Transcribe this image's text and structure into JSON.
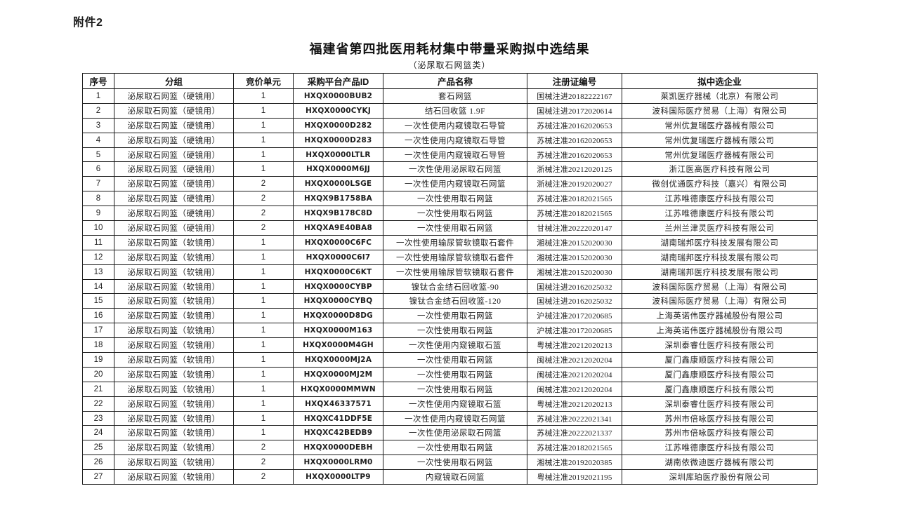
{
  "page": {
    "attachment_label": "附件2",
    "title": "福建省第四批医用耗材集中带量采购拟中选结果",
    "subtitle": "（泌尿取石网篮类）"
  },
  "table": {
    "columns": [
      "序号",
      "分组",
      "竞价单元",
      "采购平台产品ID",
      "产品名称",
      "注册证编号",
      "拟中选企业"
    ],
    "column_keys": [
      "index",
      "group",
      "bidding-unit",
      "product-id",
      "product-name",
      "registration-no",
      "company"
    ],
    "rows": [
      [
        "1",
        "泌尿取石网篮（硬镜用）",
        "1",
        "HXQX0000BUB2",
        "套石网篮",
        "国械注进20182222167",
        "莱凯医疗器械（北京）有限公司"
      ],
      [
        "2",
        "泌尿取石网篮（硬镜用）",
        "1",
        "HXQX0000CYKJ",
        "结石回收篮 1.9F",
        "国械注进20172020614",
        "波科国际医疗贸易（上海）有限公司"
      ],
      [
        "3",
        "泌尿取石网篮（硬镜用）",
        "1",
        "HXQX0000D282",
        "一次性使用内窥镜取石导管",
        "苏械注准20162020653",
        "常州优复瑞医疗器械有限公司"
      ],
      [
        "4",
        "泌尿取石网篮（硬镜用）",
        "1",
        "HXQX0000D283",
        "一次性使用内窥镜取石导管",
        "苏械注准20162020653",
        "常州优复瑞医疗器械有限公司"
      ],
      [
        "5",
        "泌尿取石网篮（硬镜用）",
        "1",
        "HXQX0000LTLR",
        "一次性使用内窥镜取石导管",
        "苏械注准20162020653",
        "常州优复瑞医疗器械有限公司"
      ],
      [
        "6",
        "泌尿取石网篮（硬镜用）",
        "1",
        "HXQX0000M6JJ",
        "一次性使用泌尿取石网篮",
        "浙械注准20212020125",
        "浙江医高医疗科技有限公司"
      ],
      [
        "7",
        "泌尿取石网篮（硬镜用）",
        "2",
        "HXQX0000LSGE",
        "一次性使用内窥镜取石网篮",
        "浙械注准20192020027",
        "微创优通医疗科技（嘉兴）有限公司"
      ],
      [
        "8",
        "泌尿取石网篮（硬镜用）",
        "2",
        "HXQX9B1758BA",
        "一次性使用取石网篮",
        "苏械注准20182021565",
        "江苏唯德康医疗科技有限公司"
      ],
      [
        "9",
        "泌尿取石网篮（硬镜用）",
        "2",
        "HXQX9B178C8D",
        "一次性使用取石网篮",
        "苏械注准20182021565",
        "江苏唯德康医疗科技有限公司"
      ],
      [
        "10",
        "泌尿取石网篮（硬镜用）",
        "2",
        "HXQXA9E40BA8",
        "一次性使用取石网篮",
        "甘械注准20222020147",
        "兰州兰津灵医疗科技有限公司"
      ],
      [
        "11",
        "泌尿取石网篮（软镜用）",
        "1",
        "HXQX0000C6FC",
        "一次性使用输尿管软镜取石套件",
        "湘械注准20152020030",
        "湖南瑞邦医疗科技发展有限公司"
      ],
      [
        "12",
        "泌尿取石网篮（软镜用）",
        "1",
        "HXQX0000C6I7",
        "一次性使用输尿管软镜取石套件",
        "湘械注准20152020030",
        "湖南瑞邦医疗科技发展有限公司"
      ],
      [
        "13",
        "泌尿取石网篮（软镜用）",
        "1",
        "HXQX0000C6KT",
        "一次性使用输尿管软镜取石套件",
        "湘械注准20152020030",
        "湖南瑞邦医疗科技发展有限公司"
      ],
      [
        "14",
        "泌尿取石网篮（软镜用）",
        "1",
        "HXQX0000CYBP",
        "镍钛合金结石回收篮-90",
        "国械注进20162025032",
        "波科国际医疗贸易（上海）有限公司"
      ],
      [
        "15",
        "泌尿取石网篮（软镜用）",
        "1",
        "HXQX0000CYBQ",
        "镍钛合金结石回收篮-120",
        "国械注进20162025032",
        "波科国际医疗贸易（上海）有限公司"
      ],
      [
        "16",
        "泌尿取石网篮（软镜用）",
        "1",
        "HXQX0000D8DG",
        "一次性使用取石网篮",
        "沪械注准20172020685",
        "上海英诺伟医疗器械股份有限公司"
      ],
      [
        "17",
        "泌尿取石网篮（软镜用）",
        "1",
        "HXQX0000M163",
        "一次性使用取石网篮",
        "沪械注准20172020685",
        "上海英诺伟医疗器械股份有限公司"
      ],
      [
        "18",
        "泌尿取石网篮（软镜用）",
        "1",
        "HXQX0000M4GH",
        "一次性使用内窥镜取石篮",
        "粤械注准20212020213",
        "深圳泰睿仕医疗科技有限公司"
      ],
      [
        "19",
        "泌尿取石网篮（软镜用）",
        "1",
        "HXQX0000MJ2A",
        "一次性使用取石网篮",
        "闽械注准20212020204",
        "厦门鑫康顺医疗科技有限公司"
      ],
      [
        "20",
        "泌尿取石网篮（软镜用）",
        "1",
        "HXQX0000MJ2M",
        "一次性使用取石网篮",
        "闽械注准20212020204",
        "厦门鑫康顺医疗科技有限公司"
      ],
      [
        "21",
        "泌尿取石网篮（软镜用）",
        "1",
        "HXQX0000MMWN",
        "一次性使用取石网篮",
        "闽械注准20212020204",
        "厦门鑫康顺医疗科技有限公司"
      ],
      [
        "22",
        "泌尿取石网篮（软镜用）",
        "1",
        "HXQX46337571",
        "一次性使用内窥镜取石篮",
        "粤械注准20212020213",
        "深圳泰睿仕医疗科技有限公司"
      ],
      [
        "23",
        "泌尿取石网篮（软镜用）",
        "1",
        "HXQXC41DDF5E",
        "一次性使用内窥镜取石网篮",
        "苏械注准20222021341",
        "苏州市倍咏医疗科技有限公司"
      ],
      [
        "24",
        "泌尿取石网篮（软镜用）",
        "1",
        "HXQXC42BEDB9",
        "一次性使用泌尿取石网篮",
        "苏械注准20222021337",
        "苏州市倍咏医疗科技有限公司"
      ],
      [
        "25",
        "泌尿取石网篮（软镜用）",
        "2",
        "HXQX0000DEBH",
        "一次性使用取石网篮",
        "苏械注准20182021565",
        "江苏唯德康医疗科技有限公司"
      ],
      [
        "26",
        "泌尿取石网篮（软镜用）",
        "2",
        "HXQX0000LRM0",
        "一次性使用取石网篮",
        "湘械注准20192020385",
        "湖南依微迪医疗器械有限公司"
      ],
      [
        "27",
        "泌尿取石网篮（软镜用）",
        "2",
        "HXQX0000LTP9",
        "内窥镜取石网篮",
        "粤械注准20192021195",
        "深圳库珀医疗股份有限公司"
      ]
    ]
  }
}
